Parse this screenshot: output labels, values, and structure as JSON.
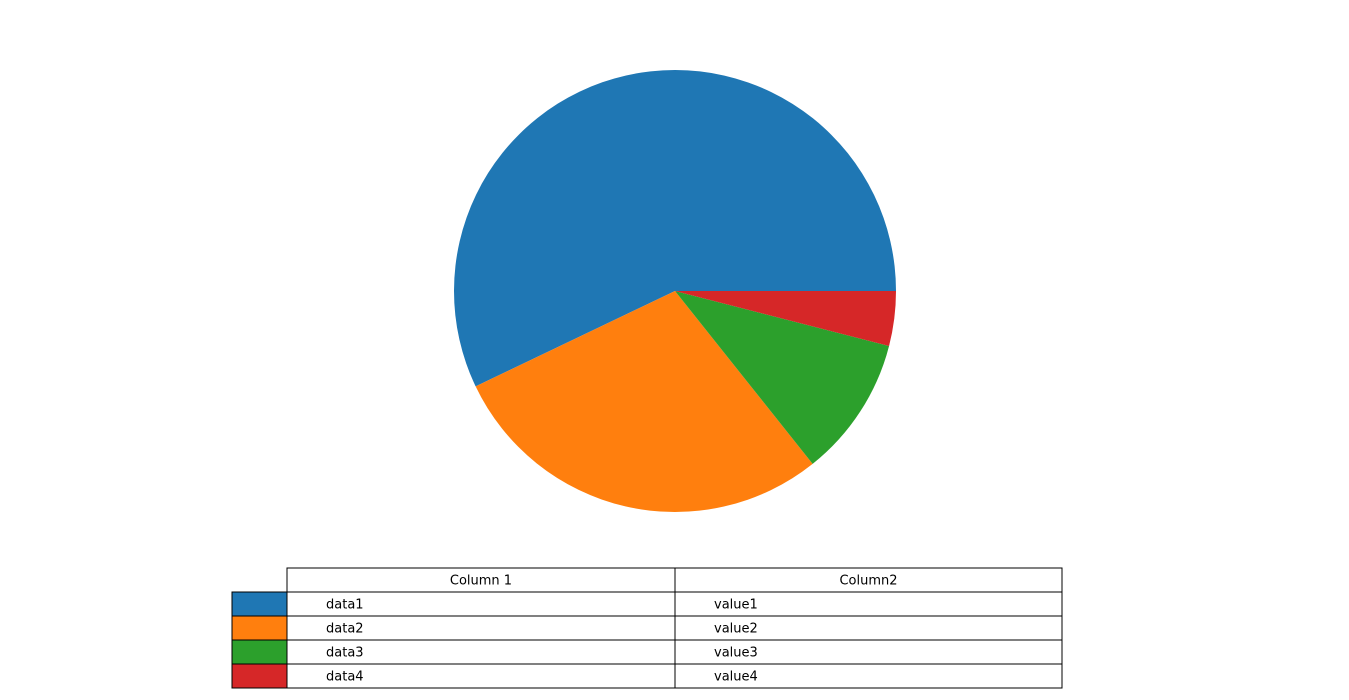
{
  "chart_data": {
    "type": "pie",
    "values": [
      57.1,
      28.6,
      10.3,
      4.0
    ],
    "colors": [
      "#1f77b4",
      "#ff7f0e",
      "#2ca02c",
      "#d62728"
    ],
    "start_angle": 0,
    "table": {
      "columns": [
        "Column 1",
        "Column2"
      ],
      "rows": [
        [
          "data1",
          "value1"
        ],
        [
          "data2",
          "value2"
        ],
        [
          "data3",
          "value3"
        ],
        [
          "data4",
          "value4"
        ]
      ]
    }
  }
}
